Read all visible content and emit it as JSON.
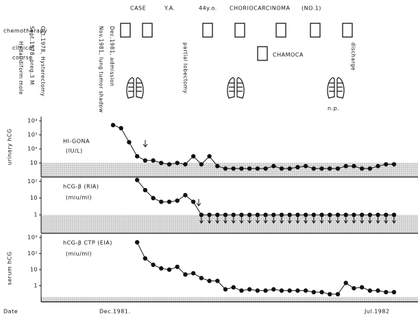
{
  "header": {
    "case": "CASE",
    "patient": "Y.A.",
    "age": "44y.o.",
    "diagnosis": "CHORIOCARCINOMA",
    "number": "(NO.1)"
  },
  "rows": {
    "chemotherapy": "chemotherapy",
    "clinical": "clinical",
    "course": "course"
  },
  "events": [
    "Hydatidiform mole",
    "Sept.1978, preg.3 M",
    "Oct.1978, Hysterectomy",
    "Nov.1981, lung tumor shadow",
    "Dec.1981, admission",
    "partial lobectomy",
    "discharge"
  ],
  "chamoca": "CHAMOCA",
  "np": "n.p.",
  "date_axis": {
    "label": "Date",
    "start": "Dec.1981.",
    "end": "Jul.1982"
  },
  "chart_data": [
    {
      "type": "line",
      "ylabel": "urinary hCG",
      "assay": "HI-GONA",
      "unit": "(IU/L)",
      "log": true,
      "color": "#111111",
      "categories": [
        null,
        null,
        null,
        null,
        null,
        null,
        null,
        null,
        null,
        null,
        null,
        null,
        null,
        null,
        null,
        null,
        null,
        null,
        null,
        null,
        null,
        null,
        null,
        null,
        null,
        null,
        null,
        null,
        null,
        null,
        null,
        null,
        null,
        null,
        null,
        null
      ],
      "values": [
        5000,
        3000,
        300,
        30,
        15,
        15,
        10,
        8,
        10,
        8,
        30,
        8,
        30,
        6,
        4,
        4,
        4,
        4,
        4,
        4,
        6,
        4,
        4,
        5,
        6,
        4,
        4,
        4,
        4,
        6,
        6,
        4,
        4,
        6,
        8,
        8
      ],
      "ylim": [
        1,
        20000
      ],
      "yticks": [
        {
          "value": 10000,
          "label": "10⁴"
        },
        {
          "value": 1000,
          "label": "10³"
        },
        {
          "value": 100,
          "label": "10²"
        },
        10
      ],
      "normal_max": 10
    },
    {
      "type": "line",
      "assay": "hCG-β (RIA)",
      "unit": "(miu/ml)",
      "log": true,
      "color": "#111111",
      "categories": [
        null,
        null,
        null,
        null,
        null,
        null,
        null,
        null,
        null,
        null,
        null,
        null,
        null,
        null,
        null,
        null,
        null,
        null,
        null,
        null,
        null,
        null,
        null,
        null,
        null,
        null,
        null,
        null,
        null,
        null,
        null,
        null,
        null,
        null,
        null,
        null
      ],
      "values": [
        null,
        null,
        null,
        120,
        30,
        10,
        6,
        6,
        7,
        15,
        6,
        1,
        1,
        1,
        1,
        1,
        1,
        1,
        1,
        1,
        1,
        1,
        1,
        1,
        1,
        1,
        1,
        1,
        1,
        1,
        1,
        1,
        1,
        1,
        1,
        1
      ],
      "ylim": [
        0.08,
        150
      ],
      "yticks": [
        {
          "value": 100,
          "label": "10²"
        },
        10,
        1
      ],
      "normal_max": 1,
      "detection_limit": 1
    },
    {
      "type": "line",
      "ylabel": "serum hCG",
      "assay": "hCG-β CTP (EIA)",
      "unit": "(miu/ml)",
      "log": true,
      "color": "#111111",
      "categories": [
        null,
        null,
        null,
        null,
        null,
        null,
        null,
        null,
        null,
        null,
        null,
        null,
        null,
        null,
        null,
        null,
        null,
        null,
        null,
        null,
        null,
        null,
        null,
        null,
        null,
        null,
        null,
        null,
        null,
        null,
        null,
        null,
        null,
        null,
        null,
        null
      ],
      "values": [
        null,
        null,
        null,
        500,
        50,
        20,
        12,
        10,
        15,
        5,
        6,
        3,
        2,
        2,
        0.6,
        0.8,
        0.5,
        0.6,
        0.5,
        0.5,
        0.6,
        0.5,
        0.5,
        0.5,
        0.5,
        0.4,
        0.4,
        0.3,
        0.3,
        1.5,
        0.7,
        0.8,
        0.5,
        0.5,
        0.4,
        0.4
      ],
      "ylim": [
        0.1,
        1500
      ],
      "yticks": [
        {
          "value": 1000,
          "label": "10³"
        },
        {
          "value": 100,
          "label": "10²"
        },
        10,
        1
      ],
      "normal_max": 0.2
    }
  ]
}
